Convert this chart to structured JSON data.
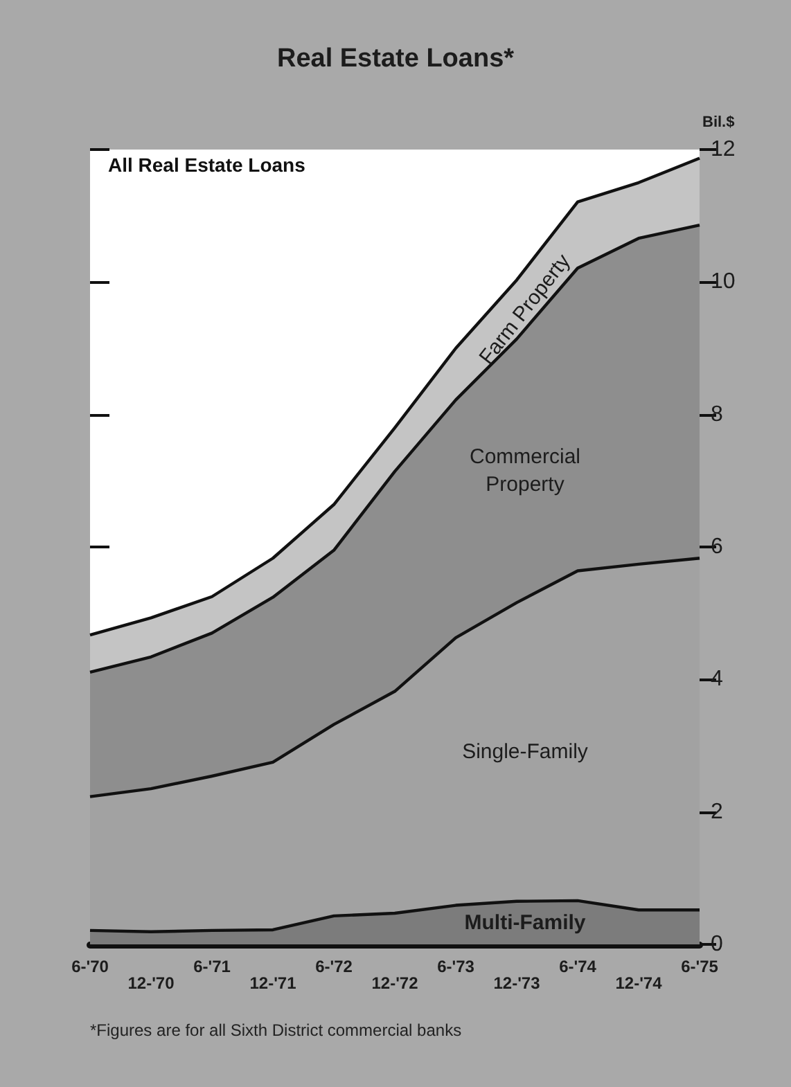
{
  "chart_data": {
    "type": "area",
    "title": "Real Estate Loans*",
    "subtitle": "All Real Estate Loans",
    "ylabel": "Bil.$",
    "annotations": [
      "*Figures are for all Sixth District commercial banks"
    ],
    "categories": [
      "6-'70",
      "12-'70",
      "6-'71",
      "12-'71",
      "6-'72",
      "12-'72",
      "6-'73",
      "12-'73",
      "6-'74",
      "12-'74",
      "6-'75"
    ],
    "stacked": true,
    "ylim": [
      0,
      12
    ],
    "yticks": [
      0,
      2,
      4,
      6,
      8,
      10,
      12
    ],
    "grid": false,
    "legend": false,
    "marker": "none",
    "series": [
      {
        "name": "Multi-Family",
        "color": "#7c7c7c",
        "values": [
          0.21,
          0.19,
          0.21,
          0.22,
          0.43,
          0.47,
          0.59,
          0.65,
          0.66,
          0.52,
          0.52
        ]
      },
      {
        "name": "Single-Family",
        "color": "#a2a2a2",
        "values": [
          2.02,
          2.16,
          2.33,
          2.53,
          2.89,
          3.35,
          4.04,
          4.51,
          4.98,
          5.22,
          5.31
        ]
      },
      {
        "name": "Commercial Property",
        "color": "#8e8e8e",
        "values": [
          1.88,
          1.99,
          2.16,
          2.49,
          2.63,
          3.32,
          3.59,
          3.98,
          4.57,
          4.92,
          5.03
        ]
      },
      {
        "name": "Farm Property",
        "color": "#c4c4c4",
        "values": [
          0.56,
          0.59,
          0.55,
          0.59,
          0.69,
          0.66,
          0.78,
          0.89,
          1.0,
          0.84,
          1.01
        ]
      }
    ]
  }
}
